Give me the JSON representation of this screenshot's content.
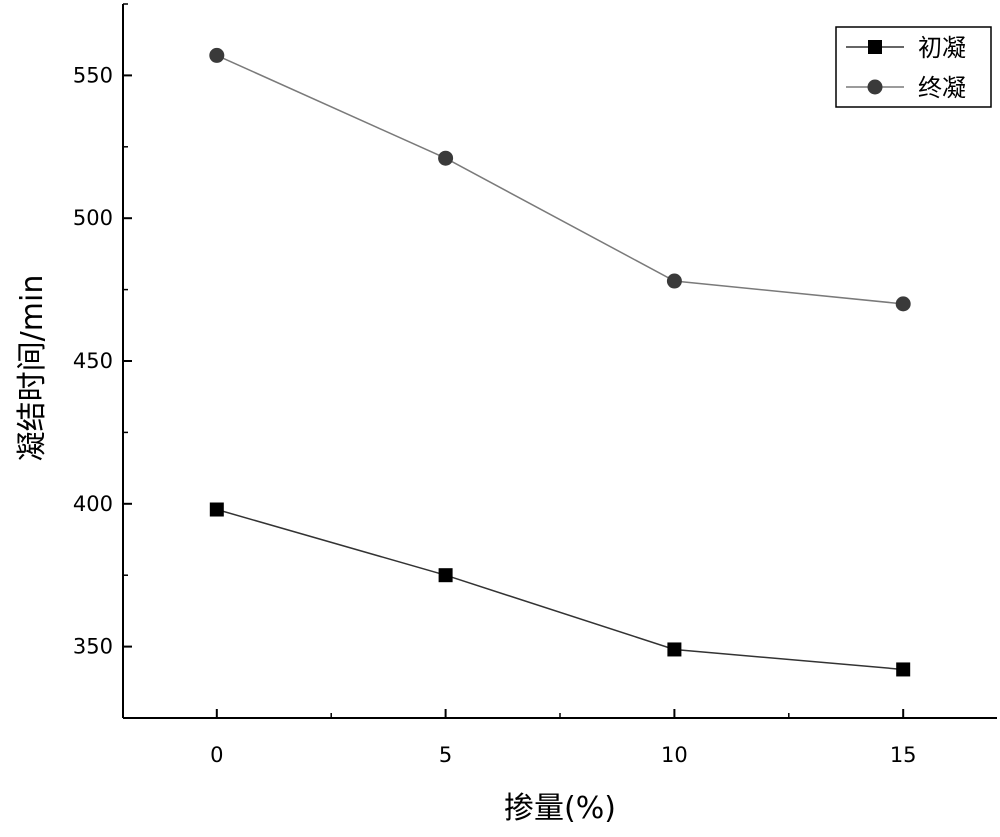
{
  "chart_data": {
    "type": "line",
    "title": "",
    "xlabel": "掺量(%)",
    "ylabel": "凝结时间/min",
    "x": [
      0,
      5,
      10,
      15
    ],
    "x_ticks": [
      0,
      5,
      10,
      15
    ],
    "x_tick_labels": [
      "0",
      "5",
      "10",
      "15"
    ],
    "xlim": [
      -2.05,
      17.05
    ],
    "y_ticks": [
      350,
      400,
      450,
      500,
      550
    ],
    "y_tick_labels": [
      "350",
      "400",
      "450",
      "500",
      "550"
    ],
    "ylim": [
      325,
      575
    ],
    "grid": false,
    "legend_position": "top-right",
    "series": [
      {
        "name": "初凝",
        "marker": "square",
        "values": [
          398,
          375,
          349,
          342
        ],
        "color": "#000000",
        "line_color": "#333333"
      },
      {
        "name": "终凝",
        "marker": "circle",
        "values": [
          557,
          521,
          478,
          470
        ],
        "color": "#3a3a3a",
        "line_color": "#7a7a7a"
      }
    ]
  }
}
